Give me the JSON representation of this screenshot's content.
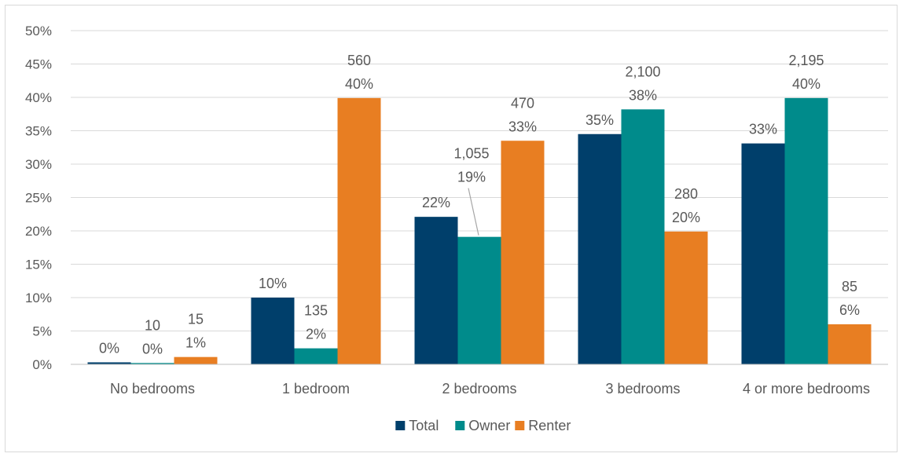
{
  "chart_data": {
    "type": "bar",
    "categories": [
      "No bedrooms",
      "1 bedroom",
      "2 bedrooms",
      "3 bedrooms",
      "4 or more bedrooms"
    ],
    "series": [
      {
        "name": "Total",
        "color": "#003f6b",
        "values": [
          0.3,
          10,
          22.1,
          34.5,
          33.1
        ],
        "labels": [
          [
            "0%"
          ],
          [
            "10%"
          ],
          [
            "22%"
          ],
          [
            "35%"
          ],
          [
            "33%"
          ]
        ]
      },
      {
        "name": "Owner",
        "color": "#008b8b",
        "values": [
          0.2,
          2.4,
          19.1,
          38.2,
          39.9
        ],
        "labels": [
          [
            "10",
            "0%"
          ],
          [
            "135",
            "2%"
          ],
          [
            "1,055",
            "19%"
          ],
          [
            "2,100",
            "38%"
          ],
          [
            "2,195",
            "40%"
          ]
        ]
      },
      {
        "name": "Renter",
        "color": "#e87e22",
        "values": [
          1.1,
          39.9,
          33.5,
          19.9,
          6
        ],
        "labels": [
          [
            "15",
            "1%"
          ],
          [
            "560",
            "40%"
          ],
          [
            "470",
            "33%"
          ],
          [
            "280",
            "20%"
          ],
          [
            "85",
            "6%"
          ]
        ]
      }
    ],
    "y_ticks": [
      "0%",
      "5%",
      "10%",
      "15%",
      "20%",
      "25%",
      "30%",
      "35%",
      "40%",
      "45%",
      "50%"
    ],
    "ylim": [
      0,
      50
    ],
    "grid": true,
    "legend_position": "bottom",
    "colors": {
      "gridline": "#d9d9d9",
      "axis": "#bfbfbf",
      "text": "#595959",
      "leader": "#a6a6a6"
    }
  }
}
